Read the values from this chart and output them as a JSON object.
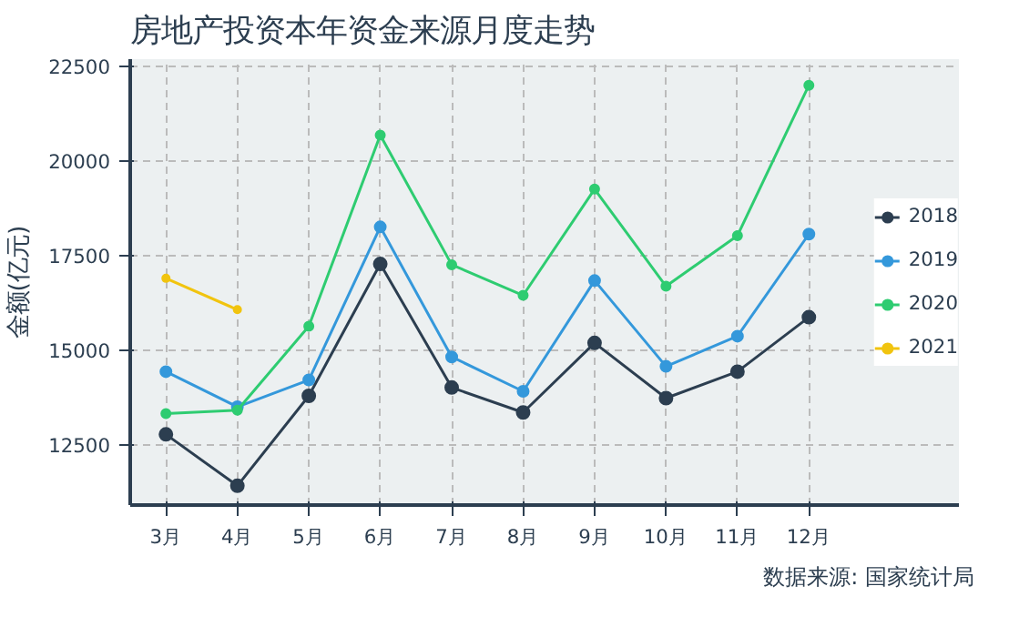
{
  "chart_data": {
    "type": "line",
    "title": "房地产投资本年资金来源月度走势",
    "ylabel": "金额(亿元)",
    "categories": [
      "3月",
      "4月",
      "5月",
      "6月",
      "7月",
      "8月",
      "9月",
      "10月",
      "11月",
      "12月"
    ],
    "series": [
      {
        "name": "2018",
        "color": "#2c3e50",
        "values": [
          12770,
          11410,
          13790,
          17280,
          14010,
          13350,
          15190,
          13730,
          14430,
          15870
        ]
      },
      {
        "name": "2019",
        "color": "#3498db",
        "values": [
          14430,
          13500,
          14210,
          18260,
          14820,
          13910,
          16840,
          14570,
          15370,
          18070
        ]
      },
      {
        "name": "2020",
        "color": "#2ecc71",
        "values": [
          13320,
          13410,
          15630,
          20690,
          17260,
          16450,
          19260,
          16690,
          18030,
          22010
        ]
      },
      {
        "name": "2021",
        "color": "#f1c40f",
        "values": [
          16900,
          16070,
          null,
          null,
          null,
          null,
          null,
          null,
          null,
          null
        ]
      }
    ],
    "ylim": [
      10900,
      22700
    ],
    "yticks": [
      12500,
      15000,
      17500,
      20000,
      22500
    ],
    "grid": true,
    "legend": "right",
    "marker": "circle",
    "line_style": "solid",
    "annotations": [
      "数据来源: 国家统计局"
    ]
  }
}
